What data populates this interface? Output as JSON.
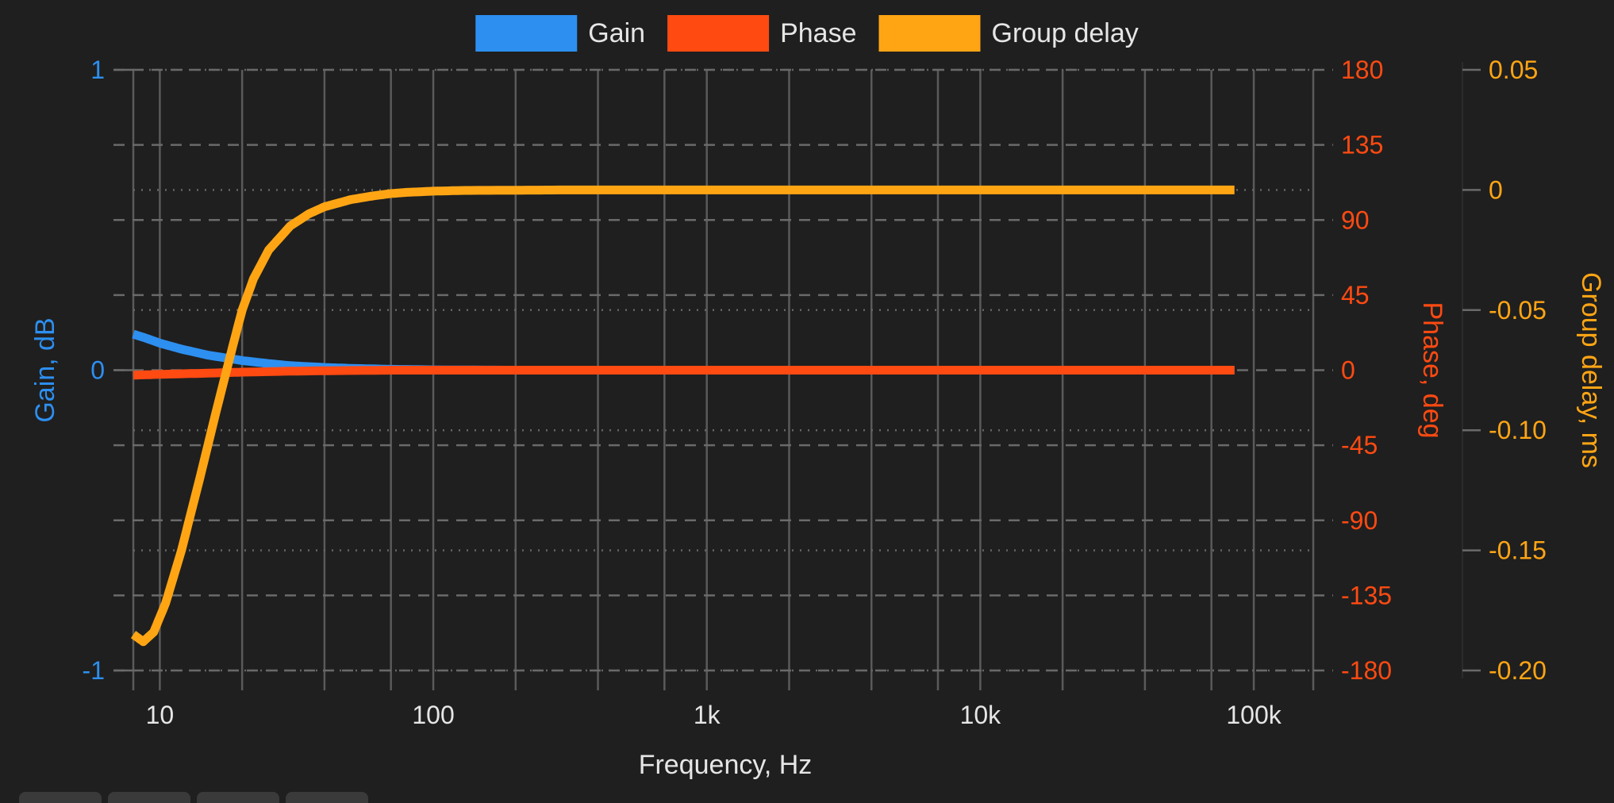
{
  "chart_data": {
    "type": "line",
    "xlabel": "Frequency, Hz",
    "x_scale": "log",
    "xlim": [
      8,
      165000
    ],
    "x_ticks": [
      10,
      100,
      1000,
      10000,
      100000
    ],
    "x_tick_labels": [
      "10",
      "100",
      "1k",
      "10k",
      "100k"
    ],
    "legend_position": "top",
    "grid": true,
    "axes": [
      {
        "id": "gain",
        "label": "Gain, dB",
        "side": "left",
        "color": "#2d8ff0",
        "ylim": [
          -1,
          1
        ],
        "ticks": [
          1,
          0,
          -1
        ],
        "tick_labels": [
          "1",
          "0",
          "-1"
        ]
      },
      {
        "id": "phase",
        "label": "Phase, deg",
        "side": "right",
        "color": "#ff4a12",
        "ylim": [
          -180,
          180
        ],
        "ticks": [
          180,
          135,
          90,
          45,
          0,
          -45,
          -90,
          -135,
          -180
        ],
        "tick_labels": [
          "180",
          "135",
          "90",
          "45",
          "0",
          "-45",
          "-90",
          "-135",
          "-180"
        ]
      },
      {
        "id": "gd",
        "label": "Group delay, ms",
        "side": "right",
        "color": "#ffa514",
        "ylim": [
          -0.2,
          0.05
        ],
        "ticks": [
          0.05,
          0,
          -0.05,
          -0.1,
          -0.15,
          -0.2
        ],
        "tick_labels": [
          "0.05",
          "0",
          "-0.05",
          "-0.10",
          "-0.15",
          "-0.20"
        ]
      }
    ],
    "series": [
      {
        "name": "Gain",
        "axis": "gain",
        "color": "#2d8ff0",
        "x": [
          8,
          9,
          10,
          12,
          15,
          20,
          25,
          30,
          40,
          50,
          70,
          100,
          200,
          500,
          1000,
          10000,
          85000
        ],
        "y": [
          0.12,
          0.105,
          0.09,
          0.07,
          0.05,
          0.032,
          0.022,
          0.015,
          0.009,
          0.006,
          0.003,
          0.001,
          0.0,
          0.0,
          0.0,
          0.0,
          0.0
        ]
      },
      {
        "name": "Phase",
        "axis": "phase",
        "color": "#ff4a12",
        "x": [
          8,
          10,
          15,
          20,
          30,
          50,
          70,
          100,
          1000,
          10000,
          85000
        ],
        "y": [
          -3,
          -2.5,
          -1.8,
          -1.2,
          -0.6,
          -0.2,
          0,
          0,
          0,
          0,
          0
        ]
      },
      {
        "name": "Group delay",
        "axis": "gd",
        "color": "#ffa514",
        "x": [
          8,
          8.7,
          9.5,
          10.5,
          12,
          14,
          16,
          18,
          20,
          22,
          25,
          30,
          35,
          40,
          50,
          60,
          70,
          80,
          100,
          130,
          200,
          300,
          500,
          1000,
          10000,
          85000
        ],
        "y": [
          -0.185,
          -0.188,
          -0.184,
          -0.172,
          -0.15,
          -0.12,
          -0.093,
          -0.07,
          -0.05,
          -0.037,
          -0.025,
          -0.015,
          -0.01,
          -0.007,
          -0.004,
          -0.0025,
          -0.0015,
          -0.001,
          -0.0005,
          -0.0002,
          -0.0001,
          0,
          0,
          0,
          0,
          0
        ]
      }
    ]
  }
}
